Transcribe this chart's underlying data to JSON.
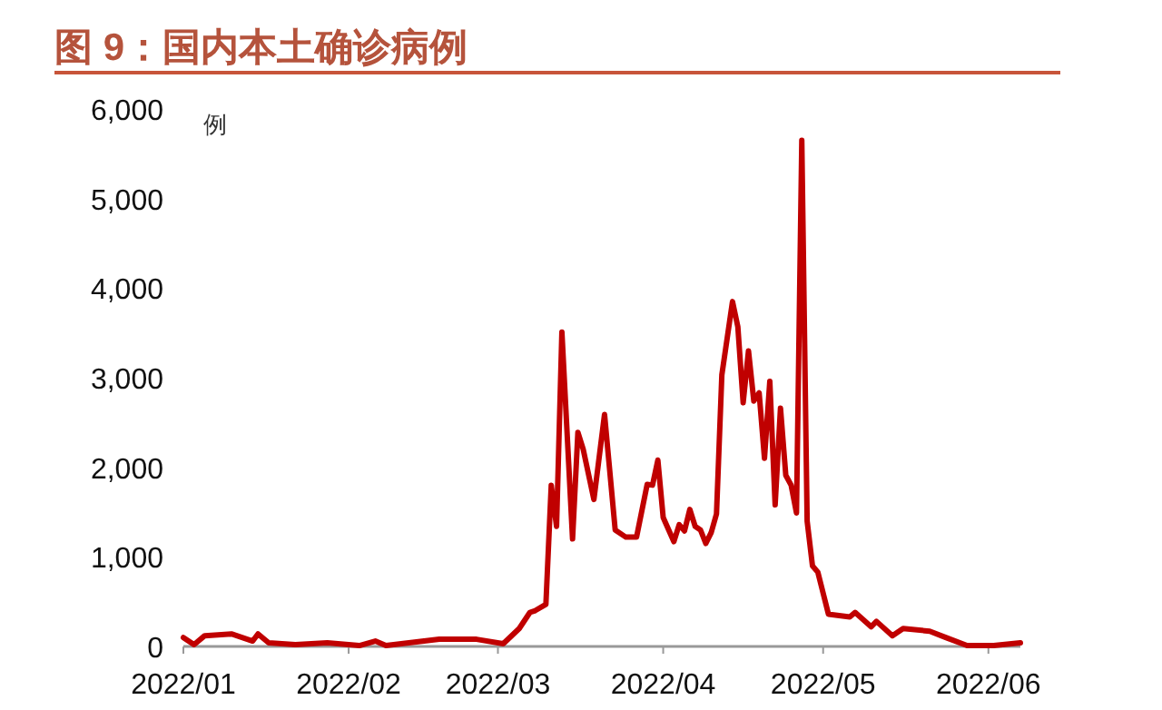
{
  "chart_data": {
    "type": "line",
    "title": "图 9：国内本土确诊病例",
    "ylabel": "例",
    "x": [
      "2022-01-01",
      "2022-01-03",
      "2022-01-05",
      "2022-01-10",
      "2022-01-14",
      "2022-01-15",
      "2022-01-17",
      "2022-01-22",
      "2022-01-28",
      "2022-02-03",
      "2022-02-06",
      "2022-02-08",
      "2022-02-18",
      "2022-02-25",
      "2022-03-02",
      "2022-03-05",
      "2022-03-07",
      "2022-03-08",
      "2022-03-10",
      "2022-03-11",
      "2022-03-12",
      "2022-03-13",
      "2022-03-15",
      "2022-03-16",
      "2022-03-17",
      "2022-03-19",
      "2022-03-21",
      "2022-03-23",
      "2022-03-25",
      "2022-03-27",
      "2022-03-29",
      "2022-03-30",
      "2022-03-31",
      "2022-04-01",
      "2022-04-03",
      "2022-04-04",
      "2022-04-05",
      "2022-04-06",
      "2022-04-07",
      "2022-04-08",
      "2022-04-09",
      "2022-04-10",
      "2022-04-11",
      "2022-04-12",
      "2022-04-14",
      "2022-04-15",
      "2022-04-16",
      "2022-04-17",
      "2022-04-18",
      "2022-04-19",
      "2022-04-20",
      "2022-04-21",
      "2022-04-22",
      "2022-04-23",
      "2022-04-24",
      "2022-04-25",
      "2022-04-26",
      "2022-04-27",
      "2022-04-28",
      "2022-04-29",
      "2022-04-30",
      "2022-05-02",
      "2022-05-06",
      "2022-05-07",
      "2022-05-10",
      "2022-05-11",
      "2022-05-14",
      "2022-05-16",
      "2022-05-21",
      "2022-05-24",
      "2022-05-28",
      "2022-06-02",
      "2022-06-07"
    ],
    "series": [
      {
        "color": "#c00000",
        "values": [
          100,
          20,
          120,
          140,
          60,
          140,
          40,
          20,
          40,
          10,
          60,
          10,
          80,
          80,
          30,
          200,
          380,
          400,
          470,
          1800,
          1340,
          3510,
          1200,
          2390,
          2200,
          1640,
          2590,
          1300,
          1220,
          1220,
          1810,
          1800,
          2080,
          1440,
          1170,
          1360,
          1290,
          1530,
          1340,
          1300,
          1150,
          1270,
          1480,
          3030,
          3850,
          3570,
          2720,
          3300,
          2740,
          2830,
          2100,
          2960,
          1580,
          2660,
          1910,
          1800,
          1490,
          5650,
          1400,
          900,
          830,
          360,
          330,
          380,
          220,
          280,
          120,
          200,
          170,
          100,
          10,
          10,
          40
        ]
      }
    ],
    "xlim": [
      "2022-01-01",
      "2022-06-07"
    ],
    "xticks": [
      {
        "value": "2022-01-01",
        "label": "2022/01"
      },
      {
        "value": "2022-02-01",
        "label": "2022/02"
      },
      {
        "value": "2022-03-01",
        "label": "2022/03"
      },
      {
        "value": "2022-04-01",
        "label": "2022/04"
      },
      {
        "value": "2022-05-01",
        "label": "2022/05"
      },
      {
        "value": "2022-06-01",
        "label": "2022/06"
      }
    ],
    "ylim": [
      0,
      6000
    ],
    "yticks": [
      {
        "value": 0,
        "label": "0"
      },
      {
        "value": 1000,
        "label": "1,000"
      },
      {
        "value": 2000,
        "label": "2,000"
      },
      {
        "value": 3000,
        "label": "3,000"
      },
      {
        "value": 4000,
        "label": "4,000"
      },
      {
        "value": 5000,
        "label": "5,000"
      },
      {
        "value": 6000,
        "label": "6,000"
      }
    ],
    "grid": false,
    "marker": "none",
    "line_style": "solid"
  }
}
